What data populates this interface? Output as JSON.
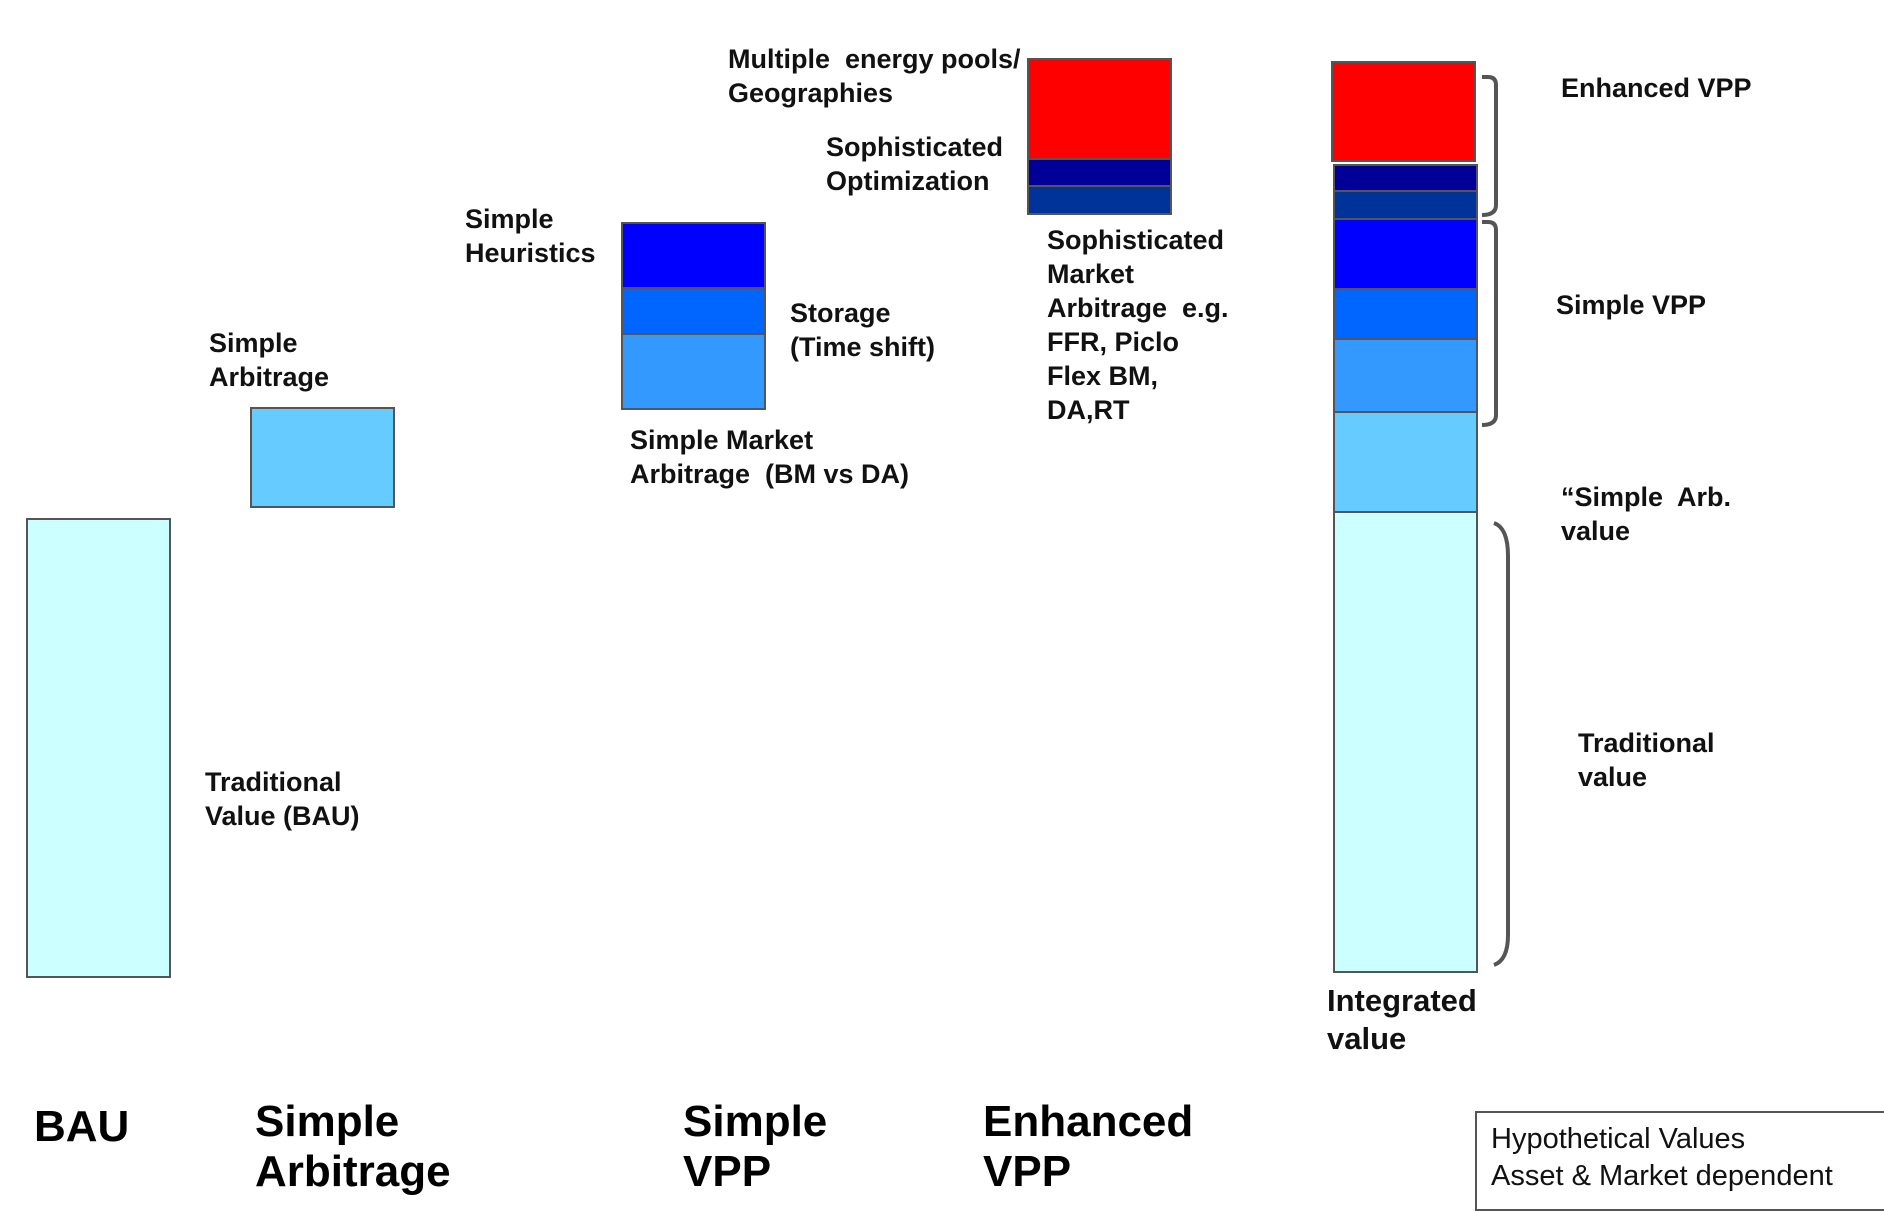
{
  "colors": {
    "traditional": "#ccffff",
    "simple_arbitrage": "#66ccff",
    "simple_market_arbitrage": "#3399ff",
    "storage": "#0066ff",
    "simple_heuristics": "#0000ff",
    "sophisticated_market_arbitrage": "#003399",
    "sophisticated_optimization": "#000099",
    "multiple_energy_pools": "#ff0000",
    "border": "#555555"
  },
  "bars": {
    "bau": {
      "label": "Traditional\nValue (BAU)",
      "category": "BAU"
    },
    "simple_arbitrage": {
      "label": "Simple\nArbitrage",
      "category": "Simple\nArbitrage"
    },
    "simple_vpp": {
      "category": "Simple\nVPP",
      "segments": {
        "simple_heuristics": "Simple\nHeuristics",
        "storage": "Storage\n(Time shift)",
        "simple_market_arbitrage": "Simple Market\nArbitrage  (BM vs DA)"
      }
    },
    "enhanced_vpp": {
      "category": "Enhanced\nVPP",
      "segments": {
        "multiple_energy_pools": "Multiple  energy pools/\nGeographies",
        "sophisticated_optimization": "Sophisticated\nOptimization",
        "sophisticated_market_arbitrage": "Sophisticated\nMarket\nArbitrage  e.g.\nFFR, Piclo\nFlex BM,\nDA,RT"
      }
    },
    "integrated": {
      "label": "Integrated\nvalue"
    }
  },
  "brace_labels": {
    "enhanced_vpp": "Enhanced VPP",
    "simple_vpp": "Simple VPP",
    "simple_arb_value": "“Simple  Arb.\nvalue",
    "traditional_value": "Traditional\nvalue"
  },
  "note": "Hypothetical Values\nAsset & Market dependent"
}
